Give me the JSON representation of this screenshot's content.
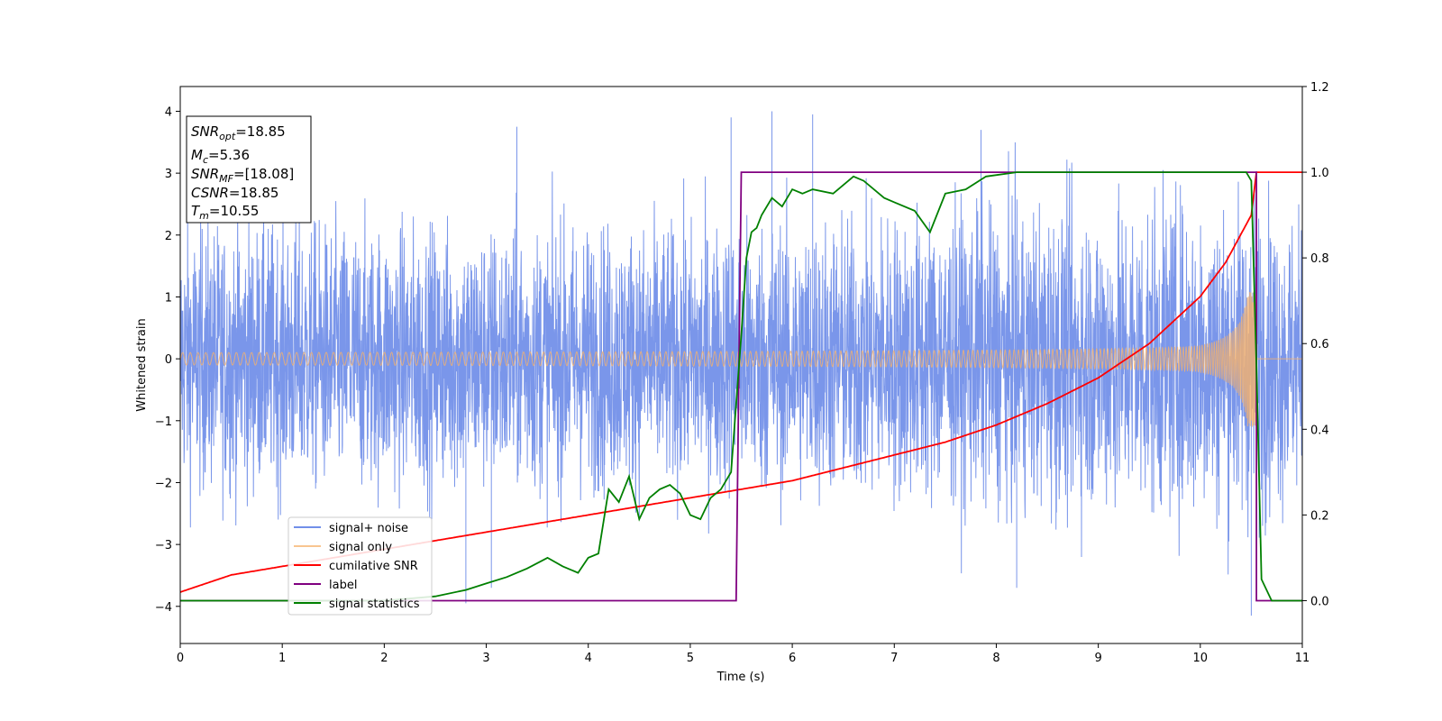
{
  "chart_data": {
    "type": "line",
    "title": "",
    "xlabel": "Time (s)",
    "ylabel": "Whitened strain",
    "xlim": [
      0,
      11
    ],
    "ylim_left": [
      -4.6,
      4.4
    ],
    "ylim_right": [
      -0.1,
      1.2
    ],
    "x_ticks": [
      0,
      1,
      2,
      3,
      4,
      5,
      6,
      7,
      8,
      9,
      10,
      11
    ],
    "y_left_ticks": [
      -4,
      -3,
      -2,
      -1,
      0,
      1,
      2,
      3,
      4
    ],
    "y_right_ticks": [
      "0.0",
      "0.2",
      "0.4",
      "0.6",
      "0.8",
      "1.0",
      "1.2"
    ],
    "grid": false,
    "legend_position": "lower-left",
    "series": [
      {
        "name": "signal+ noise",
        "axis": "left",
        "color": "#4169e1",
        "kind": "noise",
        "amplitude_envelope": [
          [
            0,
            2.6
          ],
          [
            5,
            2.6
          ],
          [
            10.5,
            3.2
          ],
          [
            11,
            2.6
          ]
        ],
        "peaks_above": [
          [
            5.8,
            4.0
          ],
          [
            6.2,
            3.95
          ],
          [
            7.85,
            3.7
          ],
          [
            5.4,
            3.9
          ],
          [
            3.3,
            3.75
          ]
        ],
        "peaks_below": [
          [
            2.8,
            -3.95
          ],
          [
            3.05,
            -3.7
          ],
          [
            10.5,
            -4.15
          ],
          [
            8.2,
            -3.7
          ]
        ]
      },
      {
        "name": "signal only",
        "axis": "left",
        "color": "#f6b26b",
        "kind": "chirp",
        "start_amplitude": 0.1,
        "merger_time": 10.55,
        "peak_amplitude": 1.1
      },
      {
        "name": "cumilative SNR",
        "axis": "right",
        "color": "#ff0000",
        "x": [
          0,
          0.5,
          1,
          1.5,
          2,
          2.5,
          3,
          3.5,
          4,
          4.5,
          5,
          5.5,
          6,
          6.5,
          7,
          7.5,
          8,
          8.5,
          9,
          9.5,
          10,
          10.25,
          10.5,
          10.55,
          11
        ],
        "values": [
          0.02,
          0.06,
          0.08,
          0.1,
          0.12,
          0.14,
          0.16,
          0.18,
          0.2,
          0.22,
          0.24,
          0.26,
          0.28,
          0.31,
          0.34,
          0.37,
          0.41,
          0.46,
          0.52,
          0.6,
          0.71,
          0.79,
          0.9,
          1.0,
          1.0
        ]
      },
      {
        "name": "label",
        "axis": "right",
        "color": "#800080",
        "x": [
          0,
          5.45,
          5.5,
          10.55,
          10.55,
          11
        ],
        "values": [
          0.0,
          0.0,
          1.0,
          1.0,
          0.0,
          0.0
        ]
      },
      {
        "name": "signal statistics",
        "axis": "right",
        "color": "#008000",
        "x": [
          0,
          0.5,
          1,
          1.5,
          2,
          2.5,
          2.8,
          3.0,
          3.2,
          3.4,
          3.6,
          3.75,
          3.9,
          4.0,
          4.1,
          4.2,
          4.3,
          4.4,
          4.5,
          4.6,
          4.7,
          4.8,
          4.9,
          5.0,
          5.1,
          5.2,
          5.3,
          5.4,
          5.5,
          5.55,
          5.6,
          5.65,
          5.7,
          5.8,
          5.9,
          6.0,
          6.1,
          6.2,
          6.4,
          6.6,
          6.7,
          6.9,
          7.0,
          7.2,
          7.35,
          7.5,
          7.7,
          7.9,
          8.2,
          8.6,
          9,
          9.5,
          10,
          10.45,
          10.5,
          10.55,
          10.6,
          10.7,
          11
        ],
        "values": [
          0.0,
          0.0,
          0.0,
          0.0,
          0.0,
          0.01,
          0.025,
          0.04,
          0.055,
          0.075,
          0.1,
          0.08,
          0.065,
          0.1,
          0.11,
          0.26,
          0.23,
          0.29,
          0.19,
          0.24,
          0.26,
          0.27,
          0.25,
          0.2,
          0.19,
          0.24,
          0.26,
          0.3,
          0.62,
          0.8,
          0.86,
          0.87,
          0.9,
          0.94,
          0.92,
          0.96,
          0.95,
          0.96,
          0.95,
          0.99,
          0.98,
          0.94,
          0.93,
          0.91,
          0.86,
          0.95,
          0.96,
          0.99,
          1.0,
          1.0,
          1.0,
          1.0,
          1.0,
          1.0,
          0.98,
          0.55,
          0.05,
          0.0,
          0.0
        ]
      }
    ],
    "annotations": {
      "snr_opt": {
        "label": "SNR",
        "sub": "opt",
        "value": "=18.85"
      },
      "mc": {
        "label": "M",
        "sub": "c",
        "value": "=5.36"
      },
      "snr_mf": {
        "label": "SNR",
        "sub": "MF",
        "value": "=[18.08]"
      },
      "csnr": {
        "label": "CSNR",
        "value": "=18.85"
      },
      "tm": {
        "label": "T",
        "sub": "m",
        "value": "=10.55"
      }
    }
  }
}
